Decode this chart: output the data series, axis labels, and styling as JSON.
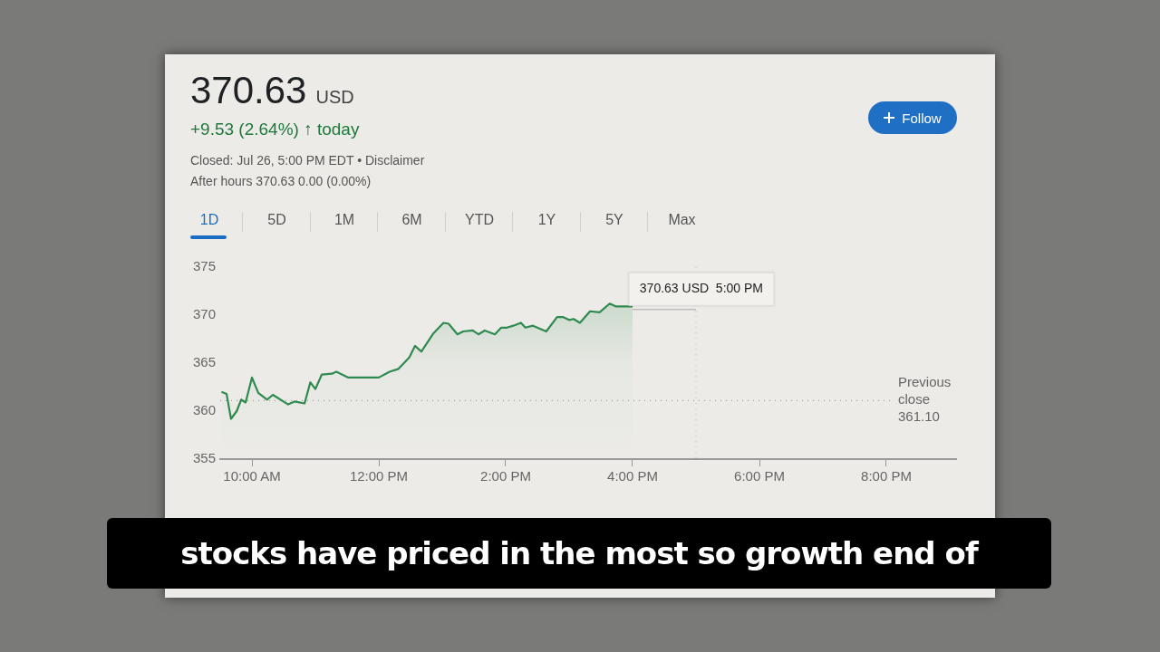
{
  "chart_data": {
    "type": "area",
    "title": "370.63 USD",
    "subtitle": "+9.53 (2.64%) ↑ today",
    "annotations": [
      "Closed: Jul 26, 5:00 PM EDT • Disclaimer",
      "After hours 370.63 0.00 (0.00%)",
      "1D",
      "5D",
      "1M",
      "6M",
      "YTD",
      "1Y",
      "5Y",
      "Max",
      "Follow",
      "stocks have priced in the most so growth end of",
      {
        "text": "370.63 USD  5:00 PM",
        "x": 17,
        "y": 370.63
      }
    ],
    "series": [
      {
        "color": "#2f8a50",
        "x": [
          9.52,
          9.6,
          9.67,
          9.76,
          9.83,
          9.9,
          10.0,
          10.1,
          10.24,
          10.33,
          10.57,
          10.67,
          10.83,
          10.92,
          11.0,
          11.1,
          11.26,
          11.33,
          11.52,
          11.93,
          12.0,
          12.17,
          12.31,
          12.48,
          12.57,
          12.67,
          12.86,
          13.02,
          13.1,
          13.24,
          13.33,
          13.48,
          13.57,
          13.67,
          13.83,
          13.93,
          14.02,
          14.12,
          14.24,
          14.31,
          14.43,
          14.64,
          14.81,
          14.9,
          15.0,
          15.07,
          15.17,
          15.33,
          15.48,
          15.64,
          15.74,
          16.0
        ],
        "values": [
          362.0,
          361.8,
          359.2,
          360.0,
          361.2,
          360.9,
          363.5,
          361.9,
          361.2,
          361.7,
          360.7,
          361.0,
          360.8,
          363.0,
          362.3,
          363.8,
          363.9,
          364.1,
          363.5,
          363.5,
          363.5,
          364.1,
          364.4,
          365.6,
          366.8,
          366.2,
          368.1,
          369.2,
          369.1,
          368.0,
          368.3,
          368.4,
          368.0,
          368.4,
          368.0,
          368.7,
          368.7,
          368.9,
          369.2,
          368.7,
          368.9,
          368.3,
          369.8,
          369.8,
          369.5,
          369.6,
          369.2,
          370.4,
          370.3,
          371.2,
          370.9,
          370.9
        ]
      },
      {
        "type": "line",
        "color": "#bdbdbd",
        "x": [
          16.0,
          17.0
        ],
        "values": [
          370.6,
          370.6
        ]
      }
    ],
    "xlim": [
      9.5,
      21.1
    ],
    "xticks": [
      {
        "value": 10,
        "label": "10:00 AM"
      },
      {
        "value": 12,
        "label": "12:00 PM"
      },
      {
        "value": 14,
        "label": "2:00 PM"
      },
      {
        "value": 16,
        "label": "4:00 PM"
      },
      {
        "value": 18,
        "label": "6:00 PM"
      },
      {
        "value": 20,
        "label": "8:00 PM"
      }
    ],
    "ylim": [
      355,
      375
    ],
    "yticks": [
      355,
      360,
      365,
      370,
      375
    ],
    "ref_lines": [
      {
        "axis": "y",
        "value": 361.1,
        "label": "Previous close 361.10",
        "color": "#9e9e9e",
        "line_style": "dotted"
      },
      {
        "axis": "x",
        "value": 17,
        "color": "#c8c8c8",
        "line_style": "dotted"
      }
    ],
    "grid": false,
    "legend": false,
    "marker": "none"
  }
}
